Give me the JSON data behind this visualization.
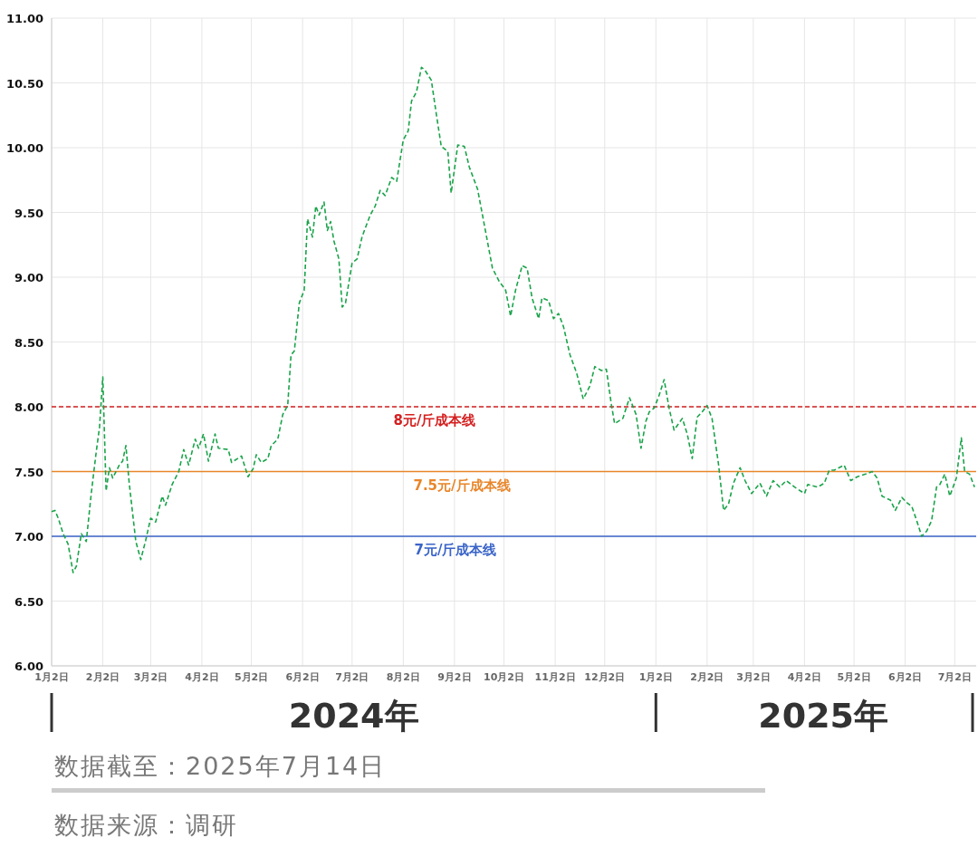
{
  "chart_data": {
    "type": "line",
    "line_style": "dashed",
    "grid": true,
    "xlim": [
      "2024-01-02",
      "2025-07-15"
    ],
    "ylim": [
      6,
      11
    ],
    "yticks": [
      {
        "value": 6,
        "label": "6.00"
      },
      {
        "value": 6.5,
        "label": "6.50"
      },
      {
        "value": 7,
        "label": "7.00"
      },
      {
        "value": 7.5,
        "label": "7.50"
      },
      {
        "value": 8,
        "label": "8.00"
      },
      {
        "value": 8.5,
        "label": "8.50"
      },
      {
        "value": 9,
        "label": "9.00"
      },
      {
        "value": 9.5,
        "label": "9.50"
      },
      {
        "value": 10,
        "label": "10.00"
      },
      {
        "value": 10.5,
        "label": "10.50"
      },
      {
        "value": 11,
        "label": "11.00"
      }
    ],
    "xticks": [
      {
        "value": "2024-01-02",
        "label": "1月2日"
      },
      {
        "value": "2024-02-02",
        "label": "2月2日"
      },
      {
        "value": "2024-03-02",
        "label": "3月2日"
      },
      {
        "value": "2024-04-02",
        "label": "4月2日"
      },
      {
        "value": "2024-05-02",
        "label": "5月2日"
      },
      {
        "value": "2024-06-02",
        "label": "6月2日"
      },
      {
        "value": "2024-07-02",
        "label": "7月2日"
      },
      {
        "value": "2024-08-02",
        "label": "8月2日"
      },
      {
        "value": "2024-09-02",
        "label": "9月2日"
      },
      {
        "value": "2024-10-02",
        "label": "10月2日"
      },
      {
        "value": "2024-11-02",
        "label": "11月2日"
      },
      {
        "value": "2024-12-02",
        "label": "12月2日"
      },
      {
        "value": "2025-01-02",
        "label": "1月2日"
      },
      {
        "value": "2025-02-02",
        "label": "2月2日"
      },
      {
        "value": "2025-03-02",
        "label": "3月2日"
      },
      {
        "value": "2025-04-02",
        "label": "4月2日"
      },
      {
        "value": "2025-05-02",
        "label": "5月2日"
      },
      {
        "value": "2025-06-02",
        "label": "6月2日"
      },
      {
        "value": "2025-07-02",
        "label": "7月2日"
      }
    ],
    "ref_lines": [
      {
        "axis": "y",
        "value": 8,
        "label": "8元/斤成本线",
        "color": "#d42020",
        "line_style": "dashed"
      },
      {
        "axis": "y",
        "value": 7.5,
        "label": "7.5元/斤成本线",
        "color": "#e8862a",
        "line_style": "solid"
      },
      {
        "axis": "y",
        "value": 7,
        "label": "7元/斤成本线",
        "color": "#3a64c8",
        "line_style": "solid"
      }
    ],
    "annotations": [
      "2024年",
      "2025年",
      "数据截至：2025年7月14日",
      "数据来源：调研"
    ],
    "series": [
      {
        "color": "#1aa34a",
        "x": [
          "2024-01-02",
          "2024-01-04",
          "2024-01-06",
          "2024-01-09",
          "2024-01-12",
          "2024-01-15",
          "2024-01-17",
          "2024-01-20",
          "2024-01-23",
          "2024-01-26",
          "2024-01-29",
          "2024-01-31",
          "2024-02-02",
          "2024-02-04",
          "2024-02-06",
          "2024-02-08",
          "2024-02-12",
          "2024-02-14",
          "2024-02-16",
          "2024-02-18",
          "2024-02-22",
          "2024-02-25",
          "2024-02-28",
          "2024-03-02",
          "2024-03-05",
          "2024-03-09",
          "2024-03-11",
          "2024-03-15",
          "2024-03-19",
          "2024-03-22",
          "2024-03-25",
          "2024-03-29",
          "2024-03-31",
          "2024-04-03",
          "2024-04-06",
          "2024-04-10",
          "2024-04-12",
          "2024-04-18",
          "2024-04-20",
          "2024-04-26",
          "2024-04-30",
          "2024-05-03",
          "2024-05-05",
          "2024-05-08",
          "2024-05-12",
          "2024-05-14",
          "2024-05-18",
          "2024-05-21",
          "2024-05-24",
          "2024-05-26",
          "2024-05-28",
          "2024-05-31",
          "2024-06-03",
          "2024-06-05",
          "2024-06-08",
          "2024-06-10",
          "2024-06-12",
          "2024-06-15",
          "2024-06-17",
          "2024-06-19",
          "2024-06-21",
          "2024-06-24",
          "2024-06-26",
          "2024-06-28",
          "2024-07-02",
          "2024-07-05",
          "2024-07-08",
          "2024-07-10",
          "2024-07-13",
          "2024-07-16",
          "2024-07-19",
          "2024-07-22",
          "2024-07-26",
          "2024-07-29",
          "2024-08-02",
          "2024-08-05",
          "2024-08-07",
          "2024-08-10",
          "2024-08-13",
          "2024-08-15",
          "2024-08-19",
          "2024-08-22",
          "2024-08-25",
          "2024-08-29",
          "2024-08-31",
          "2024-09-04",
          "2024-09-08",
          "2024-09-11",
          "2024-09-16",
          "2024-09-20",
          "2024-09-25",
          "2024-09-29",
          "2024-10-03",
          "2024-10-06",
          "2024-10-09",
          "2024-10-13",
          "2024-10-16",
          "2024-10-19",
          "2024-10-23",
          "2024-10-25",
          "2024-10-29",
          "2024-11-01",
          "2024-11-04",
          "2024-11-07",
          "2024-11-11",
          "2024-11-15",
          "2024-11-19",
          "2024-11-23",
          "2024-11-26",
          "2024-11-30",
          "2024-12-03",
          "2024-12-06",
          "2024-12-08",
          "2024-12-13",
          "2024-12-17",
          "2024-12-21",
          "2024-12-24",
          "2024-12-27",
          "2024-12-29",
          "2025-01-01",
          "2025-01-04",
          "2025-01-07",
          "2025-01-10",
          "2025-01-13",
          "2025-01-18",
          "2025-01-21",
          "2025-01-24",
          "2025-01-27",
          "2025-01-30",
          "2025-02-02",
          "2025-02-05",
          "2025-02-09",
          "2025-02-12",
          "2025-02-15",
          "2025-02-18",
          "2025-02-22",
          "2025-02-25",
          "2025-03-01",
          "2025-03-06",
          "2025-03-10",
          "2025-03-14",
          "2025-03-18",
          "2025-03-22",
          "2025-03-27",
          "2025-04-02",
          "2025-04-04",
          "2025-04-10",
          "2025-04-14",
          "2025-04-17",
          "2025-04-20",
          "2025-04-26",
          "2025-04-30",
          "2025-05-04",
          "2025-05-09",
          "2025-05-13",
          "2025-05-16",
          "2025-05-19",
          "2025-05-24",
          "2025-05-27",
          "2025-05-31",
          "2025-06-03",
          "2025-06-06",
          "2025-06-09",
          "2025-06-12",
          "2025-06-15",
          "2025-06-18",
          "2025-06-21",
          "2025-06-23",
          "2025-06-26",
          "2025-06-29",
          "2025-07-03",
          "2025-07-06",
          "2025-07-08",
          "2025-07-11",
          "2025-07-14"
        ],
        "values": [
          7.19,
          7.2,
          7.14,
          7.02,
          6.94,
          6.72,
          6.77,
          7.02,
          6.96,
          7.33,
          7.65,
          7.84,
          8.23,
          7.35,
          7.53,
          7.45,
          7.55,
          7.58,
          7.7,
          7.41,
          6.96,
          6.82,
          6.97,
          7.14,
          7.11,
          7.31,
          7.24,
          7.4,
          7.5,
          7.67,
          7.55,
          7.75,
          7.68,
          7.79,
          7.58,
          7.79,
          7.68,
          7.67,
          7.57,
          7.62,
          7.46,
          7.52,
          7.63,
          7.57,
          7.6,
          7.7,
          7.75,
          7.94,
          8.01,
          8.4,
          8.43,
          8.8,
          8.9,
          9.45,
          9.31,
          9.55,
          9.48,
          9.58,
          9.36,
          9.43,
          9.28,
          9.14,
          8.77,
          8.8,
          9.11,
          9.14,
          9.31,
          9.38,
          9.48,
          9.55,
          9.67,
          9.63,
          9.77,
          9.74,
          10.06,
          10.13,
          10.36,
          10.43,
          10.62,
          10.6,
          10.52,
          10.26,
          10.01,
          9.97,
          9.65,
          10.02,
          10.01,
          9.85,
          9.68,
          9.41,
          9.07,
          8.97,
          8.9,
          8.7,
          8.9,
          9.09,
          9.07,
          8.84,
          8.68,
          8.84,
          8.82,
          8.68,
          8.72,
          8.62,
          8.4,
          8.26,
          8.06,
          8.16,
          8.31,
          8.28,
          8.29,
          8.02,
          7.87,
          7.91,
          8.07,
          7.94,
          7.68,
          7.89,
          7.96,
          7.99,
          8.09,
          8.21,
          7.99,
          7.82,
          7.91,
          7.79,
          7.6,
          7.92,
          7.96,
          8.01,
          7.91,
          7.55,
          7.2,
          7.25,
          7.41,
          7.53,
          7.43,
          7.33,
          7.41,
          7.31,
          7.43,
          7.38,
          7.43,
          7.38,
          7.33,
          7.4,
          7.38,
          7.41,
          7.51,
          7.51,
          7.55,
          7.43,
          7.46,
          7.48,
          7.5,
          7.45,
          7.31,
          7.28,
          7.2,
          7.3,
          7.26,
          7.23,
          7.12,
          7.0,
          7.04,
          7.12,
          7.38,
          7.4,
          7.48,
          7.31,
          7.45,
          7.76,
          7.5,
          7.48,
          7.38
        ]
      }
    ]
  }
}
